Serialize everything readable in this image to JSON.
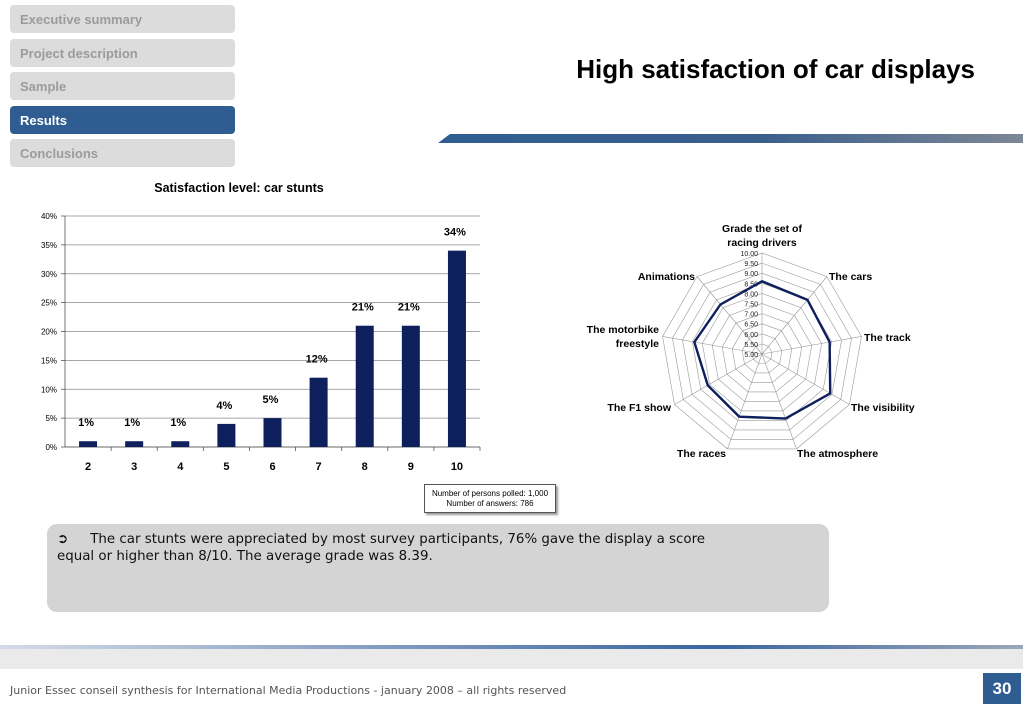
{
  "nav": {
    "items": [
      {
        "label": "Executive summary",
        "active": false
      },
      {
        "label": "Project description",
        "active": false
      },
      {
        "label": "Sample",
        "active": false
      },
      {
        "label": "Results",
        "active": true
      },
      {
        "label": "Conclusions",
        "active": false
      }
    ]
  },
  "page": {
    "title": "High satisfaction of car displays"
  },
  "chart_data": [
    {
      "type": "bar",
      "title": "Satisfaction level: car stunts",
      "xlabel": "",
      "ylabel": "",
      "categories": [
        "2",
        "3",
        "4",
        "5",
        "6",
        "7",
        "8",
        "9",
        "10"
      ],
      "values": [
        1,
        1,
        1,
        4,
        5,
        12,
        21,
        21,
        34
      ],
      "value_labels": [
        "1%",
        "1%",
        "1%",
        "4%",
        "5%",
        "12%",
        "21%",
        "21%",
        "34%"
      ],
      "yticks": [
        "0%",
        "5%",
        "10%",
        "15%",
        "20%",
        "25%",
        "30%",
        "35%",
        "40%"
      ],
      "ylim": [
        0,
        40
      ],
      "grid": true,
      "bar_color": "#0d1f5c"
    },
    {
      "type": "radar",
      "title": "Grade the set of racing drivers",
      "axes": [
        "Grade the set of racing drivers",
        "The cars",
        "The track",
        "The visibility",
        "The atmosphere",
        "The races",
        "The F1 show",
        "The motorbike freestyle",
        "Animations"
      ],
      "values": [
        8.6,
        8.5,
        8.4,
        8.9,
        8.4,
        8.3,
        8.1,
        8.4,
        8.2
      ],
      "rticks": [
        "5.00",
        "5.50",
        "6.00",
        "6.50",
        "7.00",
        "7.50",
        "8.00",
        "8.50",
        "9.00",
        "9.50",
        "10.00"
      ],
      "rlim": [
        5,
        10
      ],
      "line_color": "#0d1f5c"
    }
  ],
  "poll": {
    "persons": "Number of persons polled: 1,000",
    "answers": "Number of answers: 786"
  },
  "summary": {
    "arrow": "➲",
    "line1": "The car stunts were appreciated by most survey participants, 76% gave the display a score",
    "line2": "equal or higher than 8/10. The average grade was 8.39."
  },
  "footer": {
    "text": "Junior Essec conseil synthesis for International Media Productions - january 2008 – all rights reserved",
    "page_number": "30"
  },
  "colors": {
    "accent": "#2f5d92",
    "nav_inactive_bg": "#dcdcdc",
    "nav_inactive_text": "#9b9b9b",
    "summary_bg": "#d4d4d4"
  }
}
